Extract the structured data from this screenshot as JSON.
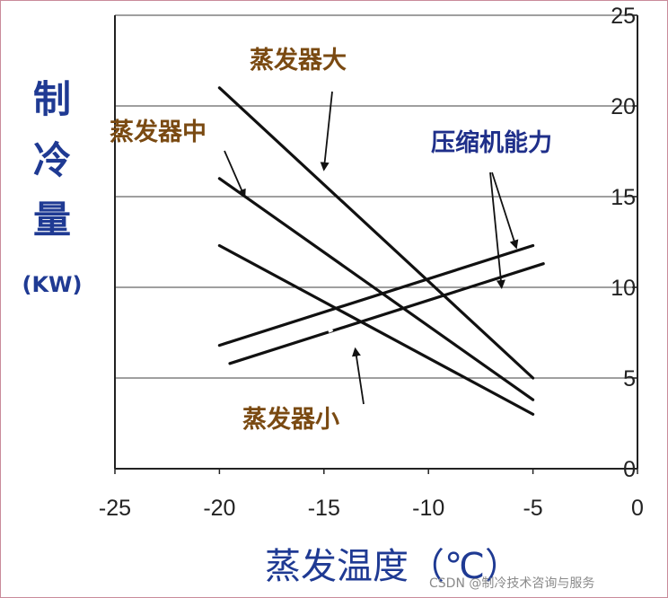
{
  "chart_data": {
    "type": "line",
    "xlabel": "蒸发温度（℃）",
    "ylabel_chars": [
      "制",
      "冷",
      "量"
    ],
    "ylabel_unit": "(KW)",
    "x_ticks": [
      "-25",
      "-20",
      "-15",
      "-10",
      "-5",
      "0"
    ],
    "y_ticks": [
      "0",
      "5",
      "10",
      "15",
      "20",
      "25"
    ],
    "xlim": [
      -25,
      0
    ],
    "ylim": [
      0,
      25
    ],
    "grid": "horizontal",
    "series": [
      {
        "x": [
          -20,
          -5
        ],
        "y": [
          21,
          5
        ]
      },
      {
        "x": [
          -20,
          -5
        ],
        "y": [
          16,
          3.8
        ]
      },
      {
        "x": [
          -20,
          -5
        ],
        "y": [
          12.3,
          3
        ]
      },
      {
        "x": [
          -20,
          -5
        ],
        "y": [
          6.8,
          12.3
        ]
      },
      {
        "x": [
          -19.5,
          -4.5
        ],
        "y": [
          5.8,
          11.3
        ]
      }
    ],
    "annotations": [
      {
        "text": "蒸发器大",
        "target": [
          -15,
          16.5
        ]
      },
      {
        "text": "蒸发器中",
        "target": [
          -18.8,
          15
        ]
      },
      {
        "text": "蒸发器小",
        "target": [
          -13.5,
          6.6
        ]
      },
      {
        "text": "压缩机能力",
        "targets": [
          [
            -5.8,
            12.2
          ],
          [
            -6.5,
            10
          ]
        ]
      }
    ]
  },
  "watermark": "CSDN @制冷技术咨询与服务"
}
